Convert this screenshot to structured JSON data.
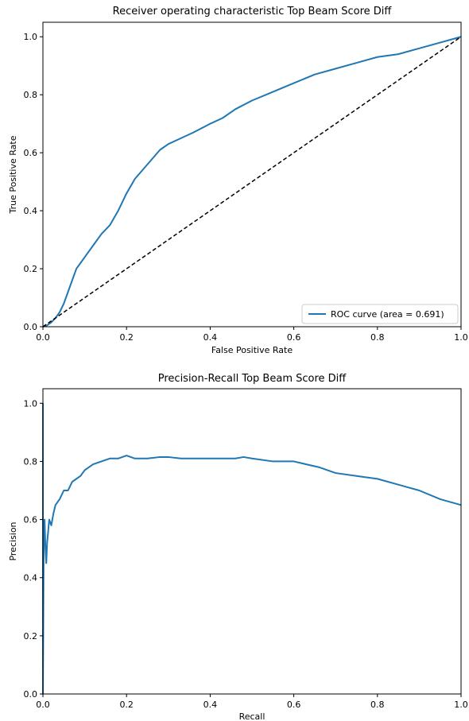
{
  "chart_data": [
    {
      "type": "line",
      "title": "Receiver operating characteristic Top Beam Score Diff",
      "xlabel": "False Positive Rate",
      "ylabel": "True Positive Rate",
      "xlim": [
        0.0,
        1.0
      ],
      "ylim": [
        0.0,
        1.05
      ],
      "xticks": [
        "0.0",
        "0.2",
        "0.4",
        "0.6",
        "0.8",
        "1.0"
      ],
      "yticks": [
        "0.0",
        "0.2",
        "0.4",
        "0.6",
        "0.8",
        "1.0"
      ],
      "grid": false,
      "legend_position": "lower-right",
      "series": [
        {
          "name": "ROC curve (area = 0.691)",
          "color": "#1f77b4",
          "style": "solid",
          "x": [
            0.0,
            0.01,
            0.02,
            0.03,
            0.04,
            0.05,
            0.06,
            0.07,
            0.08,
            0.09,
            0.1,
            0.12,
            0.14,
            0.16,
            0.18,
            0.2,
            0.22,
            0.25,
            0.28,
            0.3,
            0.33,
            0.36,
            0.4,
            0.43,
            0.46,
            0.5,
            0.55,
            0.6,
            0.65,
            0.7,
            0.75,
            0.8,
            0.85,
            0.9,
            0.95,
            1.0
          ],
          "y": [
            0.0,
            0.005,
            0.015,
            0.03,
            0.05,
            0.08,
            0.12,
            0.16,
            0.2,
            0.22,
            0.24,
            0.28,
            0.32,
            0.35,
            0.4,
            0.46,
            0.51,
            0.56,
            0.61,
            0.63,
            0.65,
            0.67,
            0.7,
            0.72,
            0.75,
            0.78,
            0.81,
            0.84,
            0.87,
            0.89,
            0.91,
            0.93,
            0.94,
            0.96,
            0.98,
            1.0
          ]
        },
        {
          "name": "",
          "color": "#000000",
          "style": "dashed",
          "x": [
            0.0,
            1.0
          ],
          "y": [
            0.0,
            1.0
          ]
        }
      ]
    },
    {
      "type": "line",
      "title": "Precision-Recall Top Beam Score Diff",
      "xlabel": "Recall",
      "ylabel": "Precision",
      "xlim": [
        0.0,
        1.0
      ],
      "ylim": [
        0.0,
        1.05
      ],
      "xticks": [
        "0.0",
        "0.2",
        "0.4",
        "0.6",
        "0.8",
        "1.0"
      ],
      "yticks": [
        "0.0",
        "0.2",
        "0.4",
        "0.6",
        "0.8",
        "1.0"
      ],
      "grid": false,
      "series": [
        {
          "name": "",
          "color": "#1f77b4",
          "style": "solid",
          "x": [
            0.0,
            0.0,
            0.002,
            0.004,
            0.006,
            0.008,
            0.01,
            0.012,
            0.015,
            0.02,
            0.025,
            0.03,
            0.04,
            0.05,
            0.06,
            0.07,
            0.08,
            0.09,
            0.1,
            0.12,
            0.14,
            0.16,
            0.18,
            0.2,
            0.22,
            0.25,
            0.28,
            0.3,
            0.33,
            0.36,
            0.4,
            0.43,
            0.46,
            0.48,
            0.5,
            0.55,
            0.6,
            0.63,
            0.66,
            0.7,
            0.75,
            0.8,
            0.85,
            0.9,
            0.95,
            1.0
          ],
          "y": [
            1.0,
            0.0,
            0.55,
            0.6,
            0.5,
            0.45,
            0.52,
            0.55,
            0.6,
            0.58,
            0.62,
            0.65,
            0.67,
            0.7,
            0.7,
            0.73,
            0.74,
            0.75,
            0.77,
            0.79,
            0.8,
            0.81,
            0.81,
            0.82,
            0.81,
            0.81,
            0.815,
            0.815,
            0.81,
            0.81,
            0.81,
            0.81,
            0.81,
            0.815,
            0.81,
            0.8,
            0.8,
            0.79,
            0.78,
            0.76,
            0.75,
            0.74,
            0.72,
            0.7,
            0.67,
            0.65
          ]
        }
      ]
    }
  ]
}
